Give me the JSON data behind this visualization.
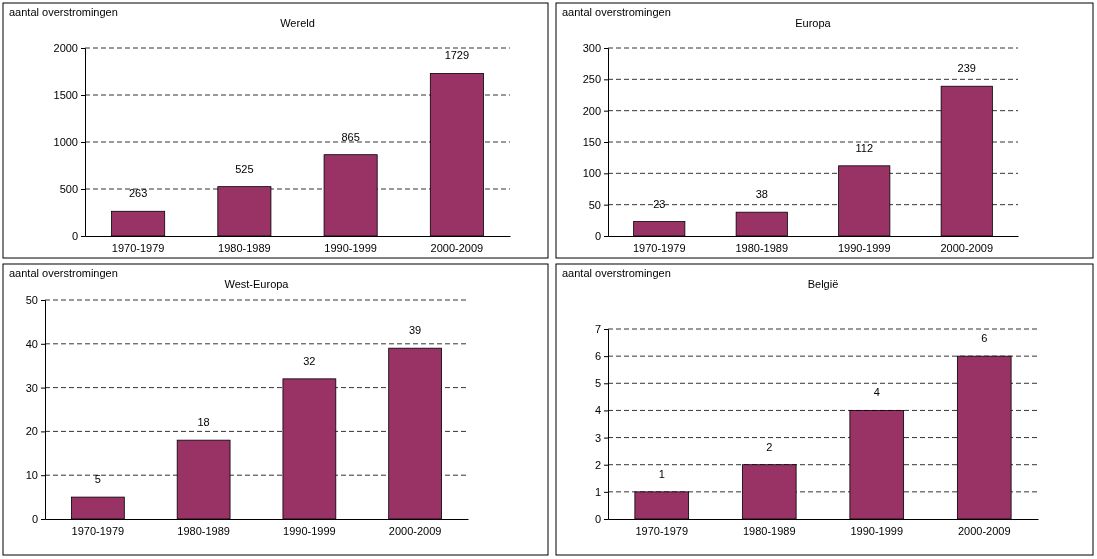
{
  "chart_data": [
    {
      "type": "bar",
      "title": "Wereld",
      "ylabel": "aantal overstromingen",
      "categories": [
        "1970-1979",
        "1980-1989",
        "1990-1999",
        "2000-2009"
      ],
      "values": [
        263,
        525,
        865,
        1729
      ],
      "color": "#993366",
      "ylim": [
        0,
        2000
      ],
      "yticks": [
        0,
        500,
        1000,
        1500,
        2000
      ],
      "grid": "y",
      "data_labels": true
    },
    {
      "type": "bar",
      "title": "Europa",
      "ylabel": "aantal overstromingen",
      "categories": [
        "1970-1979",
        "1980-1989",
        "1990-1999",
        "2000-2009"
      ],
      "values": [
        23,
        38,
        112,
        239
      ],
      "color": "#993366",
      "ylim": [
        0,
        300
      ],
      "yticks": [
        0,
        50,
        100,
        150,
        200,
        250,
        300
      ],
      "grid": "y",
      "data_labels": true
    },
    {
      "type": "bar",
      "title": "West-Europa",
      "ylabel": "aantal overstromingen",
      "categories": [
        "1970-1979",
        "1980-1989",
        "1990-1999",
        "2000-2009"
      ],
      "values": [
        5,
        18,
        32,
        39
      ],
      "color": "#993366",
      "ylim": [
        0,
        50
      ],
      "yticks": [
        0,
        10,
        20,
        30,
        40,
        50
      ],
      "grid": "y",
      "data_labels": true
    },
    {
      "type": "bar",
      "title": "België",
      "ylabel": "aantal overstromingen",
      "categories": [
        "1970-1979",
        "1980-1989",
        "1990-1999",
        "2000-2009"
      ],
      "values": [
        1,
        2,
        4,
        6
      ],
      "color": "#993366",
      "ylim": [
        0,
        7
      ],
      "yticks": [
        0,
        1,
        2,
        3,
        4,
        5,
        6,
        7
      ],
      "grid": "y",
      "data_labels": true
    }
  ]
}
